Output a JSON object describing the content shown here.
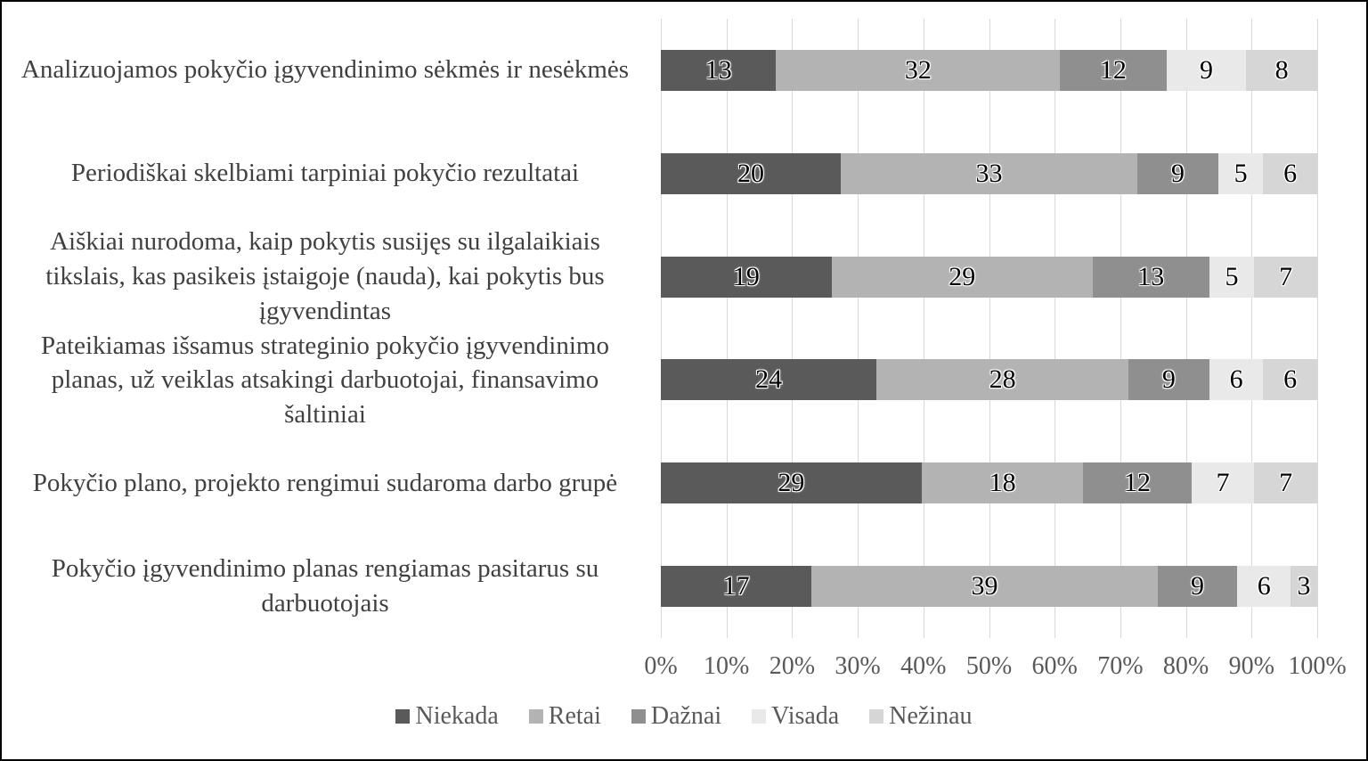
{
  "figure": {
    "background_color": "#ffffff",
    "border_color": "#000000"
  },
  "chart_data": {
    "type": "bar",
    "orientation": "horizontal",
    "stacked": true,
    "percent_stacked": true,
    "title": "",
    "categories": [
      "Analizuojamos pokyčio įgyvendinimo sėkmės ir nesėkmės",
      "Periodiškai skelbiami tarpiniai pokyčio rezultatai",
      "Aiškiai nurodoma, kaip pokytis susijęs su ilgalaikiais tikslais, kas pasikeis įstaigoje (nauda), kai pokytis bus įgyvendintas",
      "Pateikiamas išsamus strateginio pokyčio įgyvendinimo planas, už veiklas atsakingi darbuotojai, finansavimo šaltiniai",
      "Pokyčio plano, projekto rengimui sudaroma darbo grupė",
      "Pokyčio įgyvendinimo planas rengiamas pasitarus su darbuotojais"
    ],
    "series": [
      {
        "name": "Niekada",
        "color": "#5a5a5a",
        "values": [
          13,
          20,
          19,
          24,
          29,
          17
        ]
      },
      {
        "name": "Retai",
        "color": "#b3b3b3",
        "values": [
          32,
          33,
          29,
          28,
          18,
          39
        ]
      },
      {
        "name": "Dažnai",
        "color": "#8f8f8f",
        "values": [
          12,
          9,
          13,
          9,
          12,
          9
        ]
      },
      {
        "name": "Visada",
        "color": "#e9e9e9",
        "values": [
          9,
          5,
          5,
          6,
          7,
          6
        ]
      },
      {
        "name": "Nežinau",
        "color": "#d6d6d6",
        "values": [
          8,
          6,
          7,
          6,
          7,
          3
        ]
      }
    ],
    "x_axis": {
      "min": 0,
      "max": 100,
      "unit": "%",
      "tick_labels": [
        "0%",
        "10%",
        "20%",
        "30%",
        "40%",
        "50%",
        "60%",
        "70%",
        "80%",
        "90%",
        "100%"
      ]
    },
    "grid": true,
    "gridline_color": "#d9d9d9",
    "value_labels": "inside-center",
    "legend_position": "bottom"
  }
}
